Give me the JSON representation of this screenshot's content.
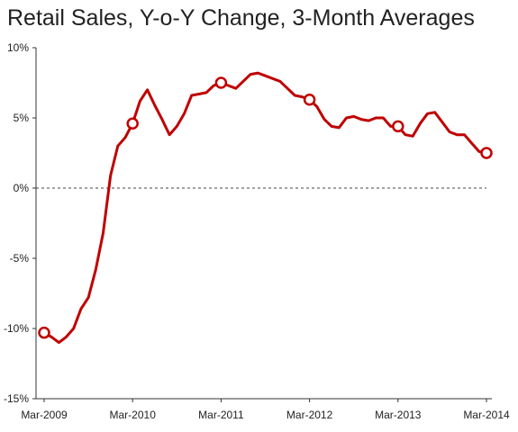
{
  "chart_data": {
    "type": "line",
    "title": "Retail Sales, Y-o-Y Change, 3-Month Averages",
    "xlabel": "",
    "ylabel": "",
    "ylim": [
      -15,
      10
    ],
    "y_ticks": [
      10,
      5,
      0,
      -5,
      -10,
      -15
    ],
    "y_tick_labels": [
      "10%",
      "5%",
      "0%",
      "-5%",
      "-10%",
      "-15%"
    ],
    "x_tick_labels": [
      "Mar-2009",
      "Mar-2010",
      "Mar-2011",
      "Mar-2012",
      "Mar-2013",
      "Mar-2014"
    ],
    "zero_line": "dashed",
    "grid": false,
    "legend": "none",
    "series_color": "#c00000",
    "markers_at_march": true,
    "series": [
      {
        "x": [
          "Mar-2009",
          "Apr-2009",
          "May-2009",
          "Jun-2009",
          "Jul-2009",
          "Aug-2009",
          "Sep-2009",
          "Oct-2009",
          "Nov-2009",
          "Dec-2009",
          "Jan-2010",
          "Feb-2010",
          "Mar-2010",
          "Apr-2010",
          "May-2010",
          "Jun-2010",
          "Jul-2010",
          "Aug-2010",
          "Sep-2010",
          "Oct-2010",
          "Nov-2010",
          "Dec-2010",
          "Jan-2011",
          "Feb-2011",
          "Mar-2011",
          "Apr-2011",
          "May-2011",
          "Jun-2011",
          "Jul-2011",
          "Aug-2011",
          "Sep-2011",
          "Oct-2011",
          "Nov-2011",
          "Dec-2011",
          "Jan-2012",
          "Feb-2012",
          "Mar-2012",
          "Apr-2012",
          "May-2012",
          "Jun-2012",
          "Jul-2012",
          "Aug-2012",
          "Sep-2012",
          "Oct-2012",
          "Nov-2012",
          "Dec-2012",
          "Jan-2013",
          "Feb-2013",
          "Mar-2013",
          "Apr-2013",
          "May-2013",
          "Jun-2013",
          "Jul-2013",
          "Aug-2013",
          "Sep-2013",
          "Oct-2013",
          "Nov-2013",
          "Dec-2013",
          "Jan-2014",
          "Feb-2014",
          "Mar-2014"
        ],
        "values": [
          -10.3,
          -10.6,
          -11.0,
          -10.6,
          -10.0,
          -8.6,
          -7.8,
          -5.8,
          -3.2,
          0.9,
          3.0,
          3.6,
          4.6,
          6.2,
          7.0,
          5.9,
          4.9,
          3.8,
          4.4,
          5.3,
          6.6,
          6.7,
          6.8,
          7.3,
          7.5,
          7.3,
          7.1,
          7.6,
          8.1,
          8.2,
          8.0,
          7.8,
          7.6,
          7.1,
          6.6,
          6.5,
          6.3,
          5.8,
          4.9,
          4.4,
          4.3,
          5.0,
          5.1,
          4.9,
          4.8,
          5.0,
          5.0,
          4.4,
          4.4,
          3.8,
          3.7,
          4.6,
          5.3,
          5.4,
          4.7,
          4.0,
          3.8,
          3.8,
          3.2,
          2.6,
          2.5
        ]
      }
    ]
  }
}
